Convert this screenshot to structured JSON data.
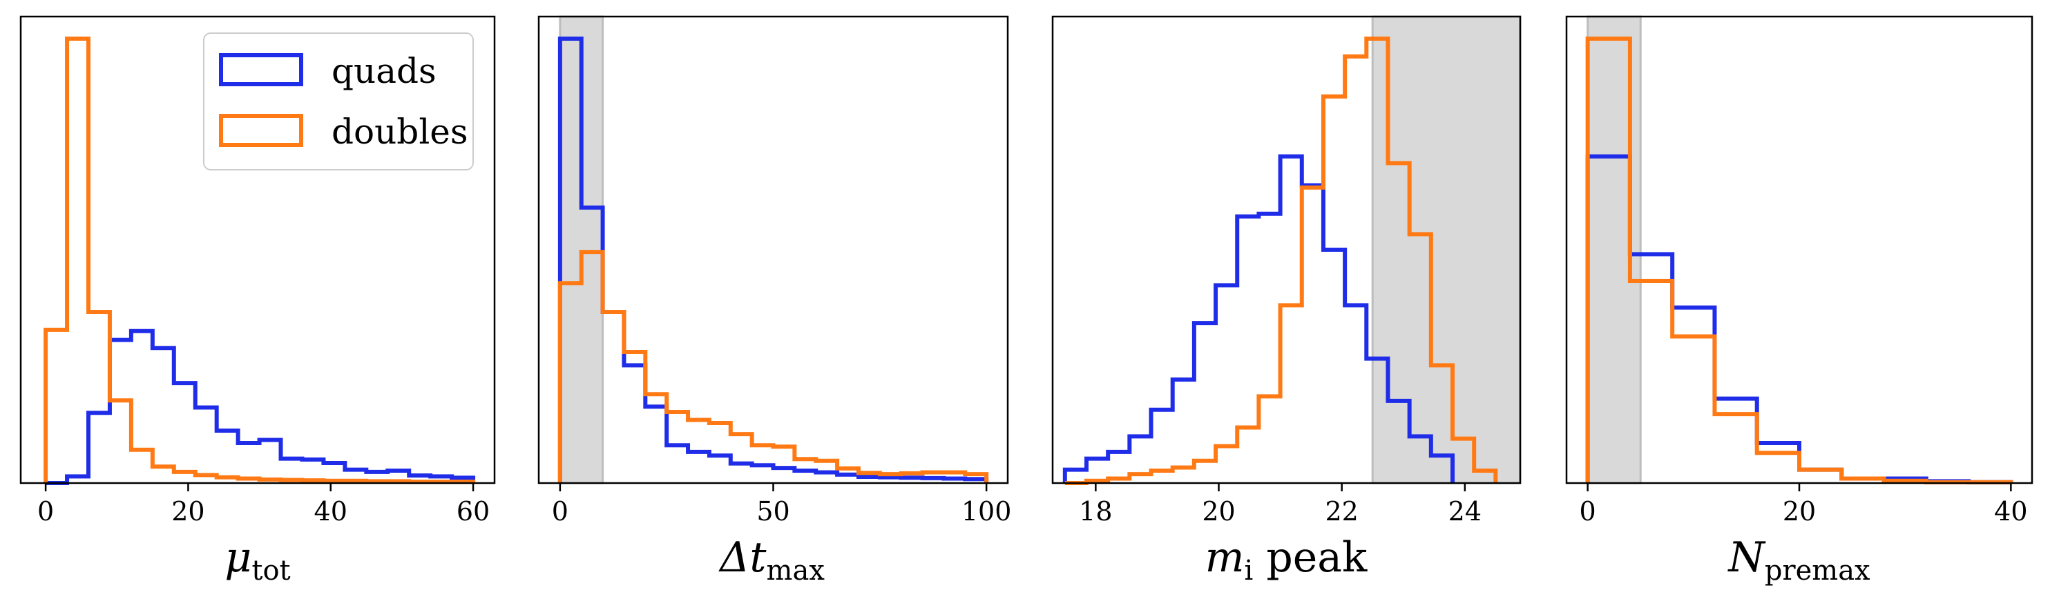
{
  "chart_data": [
    {
      "type": "histogram",
      "xlabel": {
        "symbol": "μ",
        "subscript": "tot"
      },
      "xlim": [
        -3.5,
        63
      ],
      "ylim": [
        0,
        1
      ],
      "xticks": [
        0,
        20,
        40,
        60
      ],
      "shade": null,
      "legend": {
        "placement": "upper-right",
        "entries": [
          {
            "label": "quads",
            "color": "#1f2de8"
          },
          {
            "label": "doubles",
            "color": "#ff7a14"
          }
        ]
      },
      "series": [
        {
          "name": "quads",
          "color": "#1f2de8",
          "edges": [
            0,
            3,
            6,
            9,
            12,
            15,
            18,
            21,
            24,
            27,
            30,
            33,
            36,
            39,
            42,
            45,
            48,
            51,
            54,
            57,
            60
          ],
          "values": [
            0.0,
            0.015,
            0.158,
            0.322,
            0.342,
            0.304,
            0.225,
            0.17,
            0.118,
            0.09,
            0.097,
            0.055,
            0.053,
            0.045,
            0.03,
            0.025,
            0.028,
            0.017,
            0.015,
            0.012
          ]
        },
        {
          "name": "doubles",
          "color": "#ff7a14",
          "edges": [
            0,
            3,
            6,
            9,
            12,
            15,
            18,
            21,
            24,
            27,
            30,
            33,
            36,
            39,
            42,
            45,
            48,
            51,
            54,
            57,
            60
          ],
          "values": [
            0.345,
            1.0,
            0.385,
            0.186,
            0.075,
            0.037,
            0.025,
            0.018,
            0.013,
            0.01,
            0.008,
            0.007,
            0.006,
            0.005,
            0.005,
            0.004,
            0.004,
            0.003,
            0.003,
            0.003
          ]
        }
      ]
    },
    {
      "type": "histogram",
      "xlabel": {
        "symbol": "Δt",
        "subscript": "max"
      },
      "xlim": [
        -5,
        105
      ],
      "ylim": [
        0,
        1
      ],
      "xticks": [
        0,
        50,
        100
      ],
      "shade": [
        0,
        10
      ],
      "series": [
        {
          "name": "quads",
          "color": "#1f2de8",
          "edges": [
            0,
            5,
            10,
            15,
            20,
            25,
            30,
            35,
            40,
            45,
            50,
            55,
            60,
            65,
            70,
            75,
            80,
            85,
            90,
            95,
            100
          ],
          "values": [
            1.0,
            0.62,
            0.385,
            0.265,
            0.172,
            0.085,
            0.07,
            0.062,
            0.044,
            0.04,
            0.034,
            0.028,
            0.024,
            0.019,
            0.014,
            0.013,
            0.012,
            0.011,
            0.01,
            0.009
          ]
        },
        {
          "name": "doubles",
          "color": "#ff7a14",
          "edges": [
            0,
            5,
            10,
            15,
            20,
            25,
            30,
            35,
            40,
            45,
            50,
            55,
            60,
            65,
            70,
            75,
            80,
            85,
            90,
            95,
            100
          ],
          "values": [
            0.45,
            0.52,
            0.385,
            0.295,
            0.2,
            0.16,
            0.142,
            0.135,
            0.11,
            0.085,
            0.082,
            0.054,
            0.05,
            0.033,
            0.023,
            0.02,
            0.022,
            0.024,
            0.024,
            0.02
          ]
        }
      ]
    },
    {
      "type": "histogram",
      "xlabel": {
        "symbol": "m",
        "subscript": "i",
        "suffix": "peak"
      },
      "xlim": [
        17.3,
        24.9
      ],
      "ylim": [
        0,
        1
      ],
      "xticks": [
        18,
        20,
        22,
        24
      ],
      "shade": [
        22.5,
        24.9
      ],
      "series": [
        {
          "name": "quads",
          "color": "#1f2de8",
          "edges": [
            17.5,
            17.85,
            18.2,
            18.55,
            18.9,
            19.25,
            19.6,
            19.95,
            20.3,
            20.65,
            21.0,
            21.35,
            21.7,
            22.05,
            22.4,
            22.75,
            23.1,
            23.45,
            23.8
          ],
          "values": [
            0.03,
            0.055,
            0.07,
            0.105,
            0.165,
            0.233,
            0.36,
            0.445,
            0.6,
            0.606,
            0.735,
            0.67,
            0.525,
            0.4,
            0.28,
            0.185,
            0.105,
            0.062
          ]
        },
        {
          "name": "doubles",
          "color": "#ff7a14",
          "edges": [
            17.5,
            17.85,
            18.2,
            18.55,
            18.9,
            19.25,
            19.6,
            19.95,
            20.3,
            20.65,
            21.0,
            21.35,
            21.7,
            22.05,
            22.4,
            22.75,
            23.1,
            23.45,
            23.8,
            24.15,
            24.5
          ],
          "values": [
            0.0,
            0.005,
            0.01,
            0.02,
            0.028,
            0.035,
            0.05,
            0.083,
            0.125,
            0.195,
            0.4,
            0.665,
            0.87,
            0.96,
            1.0,
            0.72,
            0.56,
            0.265,
            0.1,
            0.028
          ]
        }
      ]
    },
    {
      "type": "histogram",
      "xlabel": {
        "symbol": "N",
        "subscript": "premax"
      },
      "xlim": [
        -2,
        42
      ],
      "ylim": [
        0,
        1
      ],
      "xticks": [
        0,
        20,
        40
      ],
      "shade": [
        0,
        5
      ],
      "series": [
        {
          "name": "quads",
          "color": "#1f2de8",
          "edges": [
            0,
            4,
            8,
            12,
            16,
            20,
            24,
            28,
            32,
            36,
            40
          ],
          "values": [
            0.735,
            0.515,
            0.395,
            0.19,
            0.09,
            0.03,
            0.01,
            0.01,
            0.004,
            0.002
          ]
        },
        {
          "name": "doubles",
          "color": "#ff7a14",
          "edges": [
            0,
            4,
            8,
            12,
            16,
            20,
            24,
            28,
            32,
            36,
            40
          ],
          "values": [
            1.0,
            0.455,
            0.33,
            0.155,
            0.068,
            0.03,
            0.01,
            0.005,
            0.002,
            0.002
          ]
        }
      ]
    }
  ]
}
